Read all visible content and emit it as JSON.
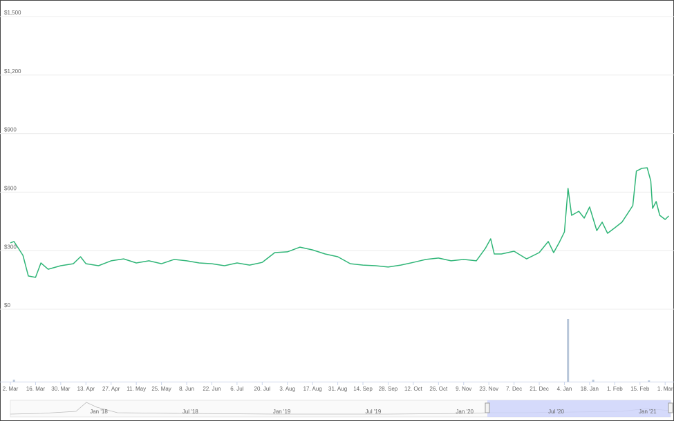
{
  "chart_data": {
    "type": "line",
    "color": "#2fb577",
    "x": [
      "2020-03-02",
      "2020-03-04",
      "2020-03-09",
      "2020-03-12",
      "2020-03-16",
      "2020-03-19",
      "2020-03-23",
      "2020-03-30",
      "2020-04-06",
      "2020-04-10",
      "2020-04-13",
      "2020-04-20",
      "2020-04-27",
      "2020-05-04",
      "2020-05-11",
      "2020-05-18",
      "2020-05-25",
      "2020-06-01",
      "2020-06-08",
      "2020-06-15",
      "2020-06-22",
      "2020-06-29",
      "2020-07-06",
      "2020-07-13",
      "2020-07-20",
      "2020-07-27",
      "2020-08-03",
      "2020-08-10",
      "2020-08-17",
      "2020-08-24",
      "2020-08-31",
      "2020-09-07",
      "2020-09-14",
      "2020-09-21",
      "2020-09-28",
      "2020-10-05",
      "2020-10-12",
      "2020-10-19",
      "2020-10-26",
      "2020-11-02",
      "2020-11-09",
      "2020-11-16",
      "2020-11-21",
      "2020-11-24",
      "2020-11-26",
      "2020-11-30",
      "2020-12-07",
      "2020-12-14",
      "2020-12-21",
      "2020-12-26",
      "2020-12-29",
      "2021-01-01",
      "2021-01-04",
      "2021-01-06",
      "2021-01-08",
      "2021-01-12",
      "2021-01-15",
      "2021-01-18",
      "2021-01-22",
      "2021-01-25",
      "2021-01-28",
      "2021-02-01",
      "2021-02-05",
      "2021-02-08",
      "2021-02-11",
      "2021-02-13",
      "2021-02-16",
      "2021-02-19",
      "2021-02-21",
      "2021-02-22",
      "2021-02-24",
      "2021-02-26",
      "2021-03-01",
      "2021-03-03"
    ],
    "values": [
      340,
      347,
      276,
      170,
      163,
      237,
      205,
      223,
      233,
      269,
      233,
      223,
      248,
      258,
      237,
      248,
      233,
      255,
      248,
      237,
      233,
      223,
      237,
      226,
      240,
      290,
      294,
      318,
      304,
      283,
      269,
      233,
      226,
      223,
      216,
      226,
      240,
      255,
      262,
      248,
      255,
      248,
      311,
      361,
      283,
      283,
      297,
      258,
      290,
      347,
      290,
      340,
      396,
      619,
      481,
      502,
      467,
      524,
      403,
      446,
      389,
      417,
      446,
      488,
      531,
      708,
      722,
      725,
      658,
      517,
      552,
      481,
      460,
      478
    ],
    "volume": {
      "x": [
        "2020-03-04",
        "2021-01-06",
        "2021-01-20",
        "2021-02-20"
      ],
      "values": [
        3,
        100,
        3,
        2
      ],
      "ylim": [
        0,
        100
      ]
    },
    "xlim": [
      "2020-03-02",
      "2021-03-04"
    ],
    "xticks": [
      {
        "value": "2020-03-02",
        "label": "2. Mar"
      },
      {
        "value": "2020-03-16",
        "label": "16. Mar"
      },
      {
        "value": "2020-03-30",
        "label": "30. Mar"
      },
      {
        "value": "2020-04-13",
        "label": "13. Apr"
      },
      {
        "value": "2020-04-27",
        "label": "27. Apr"
      },
      {
        "value": "2020-05-11",
        "label": "11. May"
      },
      {
        "value": "2020-05-25",
        "label": "25. May"
      },
      {
        "value": "2020-06-08",
        "label": "8. Jun"
      },
      {
        "value": "2020-06-22",
        "label": "22. Jun"
      },
      {
        "value": "2020-07-06",
        "label": "6. Jul"
      },
      {
        "value": "2020-07-20",
        "label": "20. Jul"
      },
      {
        "value": "2020-08-03",
        "label": "3. Aug"
      },
      {
        "value": "2020-08-17",
        "label": "17. Aug"
      },
      {
        "value": "2020-08-31",
        "label": "31. Aug"
      },
      {
        "value": "2020-09-14",
        "label": "14. Sep"
      },
      {
        "value": "2020-09-28",
        "label": "28. Sep"
      },
      {
        "value": "2020-10-12",
        "label": "12. Oct"
      },
      {
        "value": "2020-10-26",
        "label": "26. Oct"
      },
      {
        "value": "2020-11-09",
        "label": "9. Nov"
      },
      {
        "value": "2020-11-23",
        "label": "23. Nov"
      },
      {
        "value": "2020-12-07",
        "label": "7. Dec"
      },
      {
        "value": "2020-12-21",
        "label": "21. Dec"
      },
      {
        "value": "2021-01-04",
        "label": "4. Jan"
      },
      {
        "value": "2021-01-18",
        "label": "18. Jan"
      },
      {
        "value": "2021-02-01",
        "label": "1. Feb"
      },
      {
        "value": "2021-02-15",
        "label": "15. Feb"
      },
      {
        "value": "2021-03-01",
        "label": "1. Mar"
      }
    ],
    "ylim": [
      0,
      1500
    ],
    "yticks": [
      {
        "value": 0,
        "label": "$0"
      },
      {
        "value": 300,
        "label": "$300"
      },
      {
        "value": 600,
        "label": "$600"
      },
      {
        "value": 900,
        "label": "$900"
      },
      {
        "value": 1200,
        "label": "$1,200"
      },
      {
        "value": 1500,
        "label": "$1,500"
      }
    ],
    "grid": true,
    "navigator_labels": [
      "Jan '18",
      "Jul '18",
      "Jan '19",
      "Jul '19",
      "Jan '20",
      "Jul '20",
      "Jan '21"
    ]
  }
}
